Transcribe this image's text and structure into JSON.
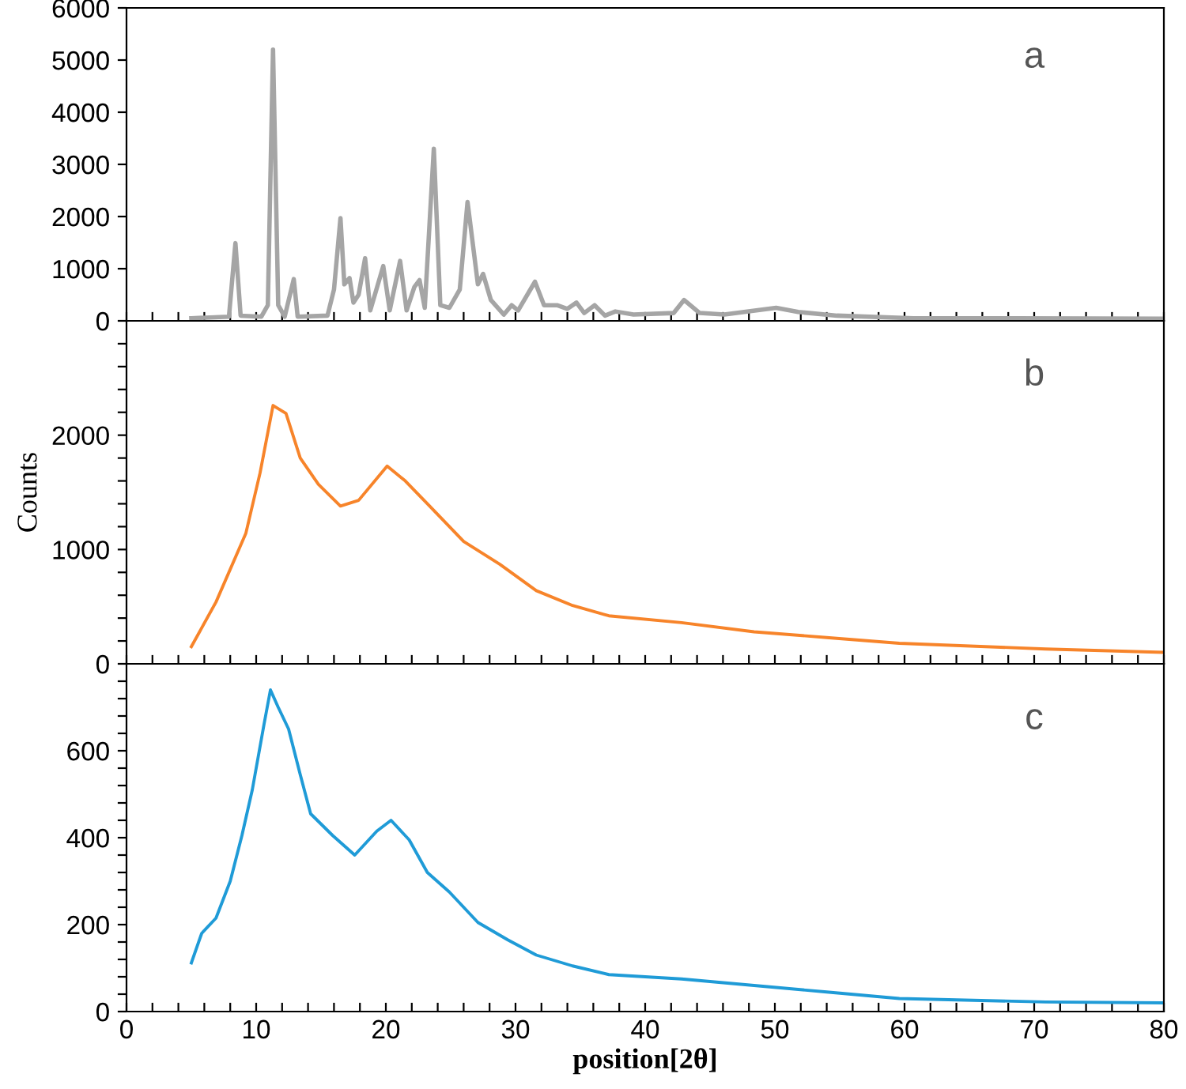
{
  "chart_data": [
    {
      "type": "line",
      "annotations": [
        "a"
      ],
      "tick_labels": "y",
      "xlim": [
        0,
        80
      ],
      "ylim": [
        0,
        6000
      ],
      "xticks": [
        {
          "value": 0,
          "label": null
        },
        {
          "value": 2,
          "label": null
        },
        {
          "value": 4,
          "label": null
        },
        {
          "value": 6,
          "label": null
        },
        {
          "value": 8,
          "label": null
        },
        {
          "value": 10,
          "label": null
        },
        {
          "value": 12,
          "label": null
        },
        {
          "value": 14,
          "label": null
        },
        {
          "value": 16,
          "label": null
        },
        {
          "value": 18,
          "label": null
        },
        {
          "value": 20,
          "label": null
        },
        {
          "value": 22,
          "label": null
        },
        {
          "value": 24,
          "label": null
        },
        {
          "value": 26,
          "label": null
        },
        {
          "value": 28,
          "label": null
        },
        {
          "value": 30,
          "label": null
        },
        {
          "value": 32,
          "label": null
        },
        {
          "value": 34,
          "label": null
        },
        {
          "value": 36,
          "label": null
        },
        {
          "value": 38,
          "label": null
        },
        {
          "value": 40,
          "label": null
        },
        {
          "value": 42,
          "label": null
        },
        {
          "value": 44,
          "label": null
        },
        {
          "value": 46,
          "label": null
        },
        {
          "value": 48,
          "label": null
        },
        {
          "value": 50,
          "label": null
        },
        {
          "value": 52,
          "label": null
        },
        {
          "value": 54,
          "label": null
        },
        {
          "value": 56,
          "label": null
        },
        {
          "value": 58,
          "label": null
        },
        {
          "value": 60,
          "label": null
        },
        {
          "value": 62,
          "label": null
        },
        {
          "value": 64,
          "label": null
        },
        {
          "value": 66,
          "label": null
        },
        {
          "value": 68,
          "label": null
        },
        {
          "value": 70,
          "label": null
        },
        {
          "value": 72,
          "label": null
        },
        {
          "value": 74,
          "label": null
        },
        {
          "value": 76,
          "label": null
        },
        {
          "value": 78,
          "label": null
        },
        {
          "value": 80,
          "label": null
        }
      ],
      "yticks": [
        0,
        1000,
        2000,
        3000,
        4000,
        5000,
        6000
      ],
      "grid": false,
      "legend": false,
      "marker": "none",
      "line_style": "solid",
      "series": [
        {
          "color": "#a5a5a5",
          "x": [
            5.0,
            7.9,
            8.4,
            8.8,
            10.4,
            10.9,
            11.3,
            11.7,
            12.2,
            12.9,
            13.2,
            15.5,
            16.0,
            16.5,
            16.8,
            17.2,
            17.5,
            17.9,
            18.4,
            18.8,
            19.8,
            20.3,
            21.1,
            21.6,
            22.2,
            22.6,
            23.0,
            23.7,
            24.2,
            24.9,
            25.7,
            26.3,
            27.1,
            27.5,
            28.1,
            29.1,
            29.7,
            30.2,
            31.5,
            32.2,
            33.2,
            34.0,
            34.7,
            35.3,
            36.1,
            36.9,
            37.7,
            39.1,
            42.2,
            43.0,
            44.2,
            46.1,
            50.1,
            51.8,
            54.8,
            60.7,
            68.5,
            80.0
          ],
          "values": [
            50,
            80,
            1490,
            100,
            80,
            300,
            5200,
            300,
            80,
            800,
            80,
            100,
            600,
            1970,
            700,
            820,
            350,
            500,
            1200,
            200,
            1050,
            200,
            1150,
            200,
            650,
            780,
            250,
            3300,
            300,
            250,
            600,
            2280,
            700,
            900,
            400,
            120,
            300,
            200,
            750,
            300,
            300,
            230,
            350,
            150,
            300,
            100,
            180,
            120,
            150,
            400,
            150,
            120,
            250,
            170,
            100,
            50,
            50,
            40
          ]
        }
      ]
    },
    {
      "type": "line",
      "annotations": [
        "b"
      ],
      "ylabel": "Counts",
      "tick_labels": "y",
      "xlim": [
        0,
        80
      ],
      "ylim": [
        0,
        3000
      ],
      "xticks": [
        {
          "value": 0,
          "label": null
        },
        {
          "value": 2,
          "label": null
        },
        {
          "value": 4,
          "label": null
        },
        {
          "value": 6,
          "label": null
        },
        {
          "value": 8,
          "label": null
        },
        {
          "value": 10,
          "label": null
        },
        {
          "value": 12,
          "label": null
        },
        {
          "value": 14,
          "label": null
        },
        {
          "value": 16,
          "label": null
        },
        {
          "value": 18,
          "label": null
        },
        {
          "value": 20,
          "label": null
        },
        {
          "value": 22,
          "label": null
        },
        {
          "value": 24,
          "label": null
        },
        {
          "value": 26,
          "label": null
        },
        {
          "value": 28,
          "label": null
        },
        {
          "value": 30,
          "label": null
        },
        {
          "value": 32,
          "label": null
        },
        {
          "value": 34,
          "label": null
        },
        {
          "value": 36,
          "label": null
        },
        {
          "value": 38,
          "label": null
        },
        {
          "value": 40,
          "label": null
        },
        {
          "value": 42,
          "label": null
        },
        {
          "value": 44,
          "label": null
        },
        {
          "value": 46,
          "label": null
        },
        {
          "value": 48,
          "label": null
        },
        {
          "value": 50,
          "label": null
        },
        {
          "value": 52,
          "label": null
        },
        {
          "value": 54,
          "label": null
        },
        {
          "value": 56,
          "label": null
        },
        {
          "value": 58,
          "label": null
        },
        {
          "value": 60,
          "label": null
        },
        {
          "value": 62,
          "label": null
        },
        {
          "value": 64,
          "label": null
        },
        {
          "value": 66,
          "label": null
        },
        {
          "value": 68,
          "label": null
        },
        {
          "value": 70,
          "label": null
        },
        {
          "value": 72,
          "label": null
        },
        {
          "value": 74,
          "label": null
        },
        {
          "value": 76,
          "label": null
        },
        {
          "value": 78,
          "label": null
        },
        {
          "value": 80,
          "label": null
        }
      ],
      "yticks": [
        0,
        {
          "value": 200,
          "label": null
        },
        {
          "value": 400,
          "label": null
        },
        {
          "value": 600,
          "label": null
        },
        {
          "value": 800,
          "label": null
        },
        1000,
        {
          "value": 1200,
          "label": null
        },
        {
          "value": 1400,
          "label": null
        },
        {
          "value": 1600,
          "label": null
        },
        {
          "value": 1800,
          "label": null
        },
        2000,
        {
          "value": 2200,
          "label": null
        },
        {
          "value": 2400,
          "label": null
        },
        {
          "value": 2600,
          "label": null
        },
        {
          "value": 2800,
          "label": null
        }
      ],
      "grid": false,
      "legend": false,
      "marker": "none",
      "line_style": "solid",
      "series": [
        {
          "color": "#f7842a",
          "x": [
            5.0,
            6.9,
            9.2,
            10.3,
            11.3,
            12.3,
            13.4,
            14.8,
            16.5,
            17.9,
            20.1,
            21.5,
            23.2,
            26.0,
            28.8,
            31.6,
            34.4,
            37.2,
            42.8,
            48.4,
            54.0,
            59.6,
            70.9,
            80.0
          ],
          "values": [
            150,
            540,
            1140,
            1670,
            2260,
            2190,
            1800,
            1570,
            1380,
            1430,
            1730,
            1600,
            1400,
            1070,
            870,
            640,
            510,
            420,
            360,
            280,
            230,
            180,
            130,
            100
          ]
        }
      ]
    },
    {
      "type": "line",
      "annotations": [
        "c"
      ],
      "xlabel": "position[2θ]",
      "xlim": [
        0,
        80
      ],
      "ylim": [
        0,
        800
      ],
      "xticks": [
        0,
        {
          "value": 2,
          "label": null
        },
        {
          "value": 4,
          "label": null
        },
        {
          "value": 6,
          "label": null
        },
        {
          "value": 8,
          "label": null
        },
        10,
        {
          "value": 12,
          "label": null
        },
        {
          "value": 14,
          "label": null
        },
        {
          "value": 16,
          "label": null
        },
        {
          "value": 18,
          "label": null
        },
        20,
        {
          "value": 22,
          "label": null
        },
        {
          "value": 24,
          "label": null
        },
        {
          "value": 26,
          "label": null
        },
        {
          "value": 28,
          "label": null
        },
        30,
        {
          "value": 32,
          "label": null
        },
        {
          "value": 34,
          "label": null
        },
        {
          "value": 36,
          "label": null
        },
        {
          "value": 38,
          "label": null
        },
        40,
        {
          "value": 42,
          "label": null
        },
        {
          "value": 44,
          "label": null
        },
        {
          "value": 46,
          "label": null
        },
        {
          "value": 48,
          "label": null
        },
        50,
        {
          "value": 52,
          "label": null
        },
        {
          "value": 54,
          "label": null
        },
        {
          "value": 56,
          "label": null
        },
        {
          "value": 58,
          "label": null
        },
        60,
        {
          "value": 62,
          "label": null
        },
        {
          "value": 64,
          "label": null
        },
        {
          "value": 66,
          "label": null
        },
        {
          "value": 68,
          "label": null
        },
        70,
        {
          "value": 72,
          "label": null
        },
        {
          "value": 74,
          "label": null
        },
        {
          "value": 76,
          "label": null
        },
        {
          "value": 78,
          "label": null
        },
        80
      ],
      "yticks": [
        0,
        {
          "value": 40,
          "label": null
        },
        {
          "value": 80,
          "label": null
        },
        {
          "value": 120,
          "label": null
        },
        {
          "value": 160,
          "label": null
        },
        200,
        {
          "value": 240,
          "label": null
        },
        {
          "value": 280,
          "label": null
        },
        {
          "value": 320,
          "label": null
        },
        {
          "value": 360,
          "label": null
        },
        400,
        {
          "value": 440,
          "label": null
        },
        {
          "value": 480,
          "label": null
        },
        {
          "value": 520,
          "label": null
        },
        {
          "value": 560,
          "label": null
        },
        600,
        {
          "value": 640,
          "label": null
        },
        {
          "value": 680,
          "label": null
        },
        {
          "value": 720,
          "label": null
        },
        {
          "value": 760,
          "label": null
        }
      ],
      "grid": false,
      "legend": false,
      "marker": "none",
      "line_style": "solid",
      "series": [
        {
          "color": "#1f9bd7",
          "x": [
            5.0,
            5.8,
            6.9,
            8.0,
            8.9,
            9.7,
            10.6,
            11.1,
            11.7,
            12.5,
            13.4,
            14.2,
            15.9,
            17.6,
            19.3,
            20.4,
            21.8,
            23.2,
            24.9,
            27.1,
            29.4,
            31.6,
            34.4,
            37.2,
            42.8,
            48.4,
            54.0,
            59.6,
            70.9,
            80.0
          ],
          "values": [
            112,
            180,
            215,
            300,
            405,
            510,
            660,
            740,
            700,
            650,
            545,
            455,
            405,
            360,
            415,
            440,
            395,
            320,
            275,
            205,
            165,
            130,
            105,
            85,
            75,
            60,
            45,
            30,
            22,
            20
          ]
        }
      ]
    }
  ]
}
